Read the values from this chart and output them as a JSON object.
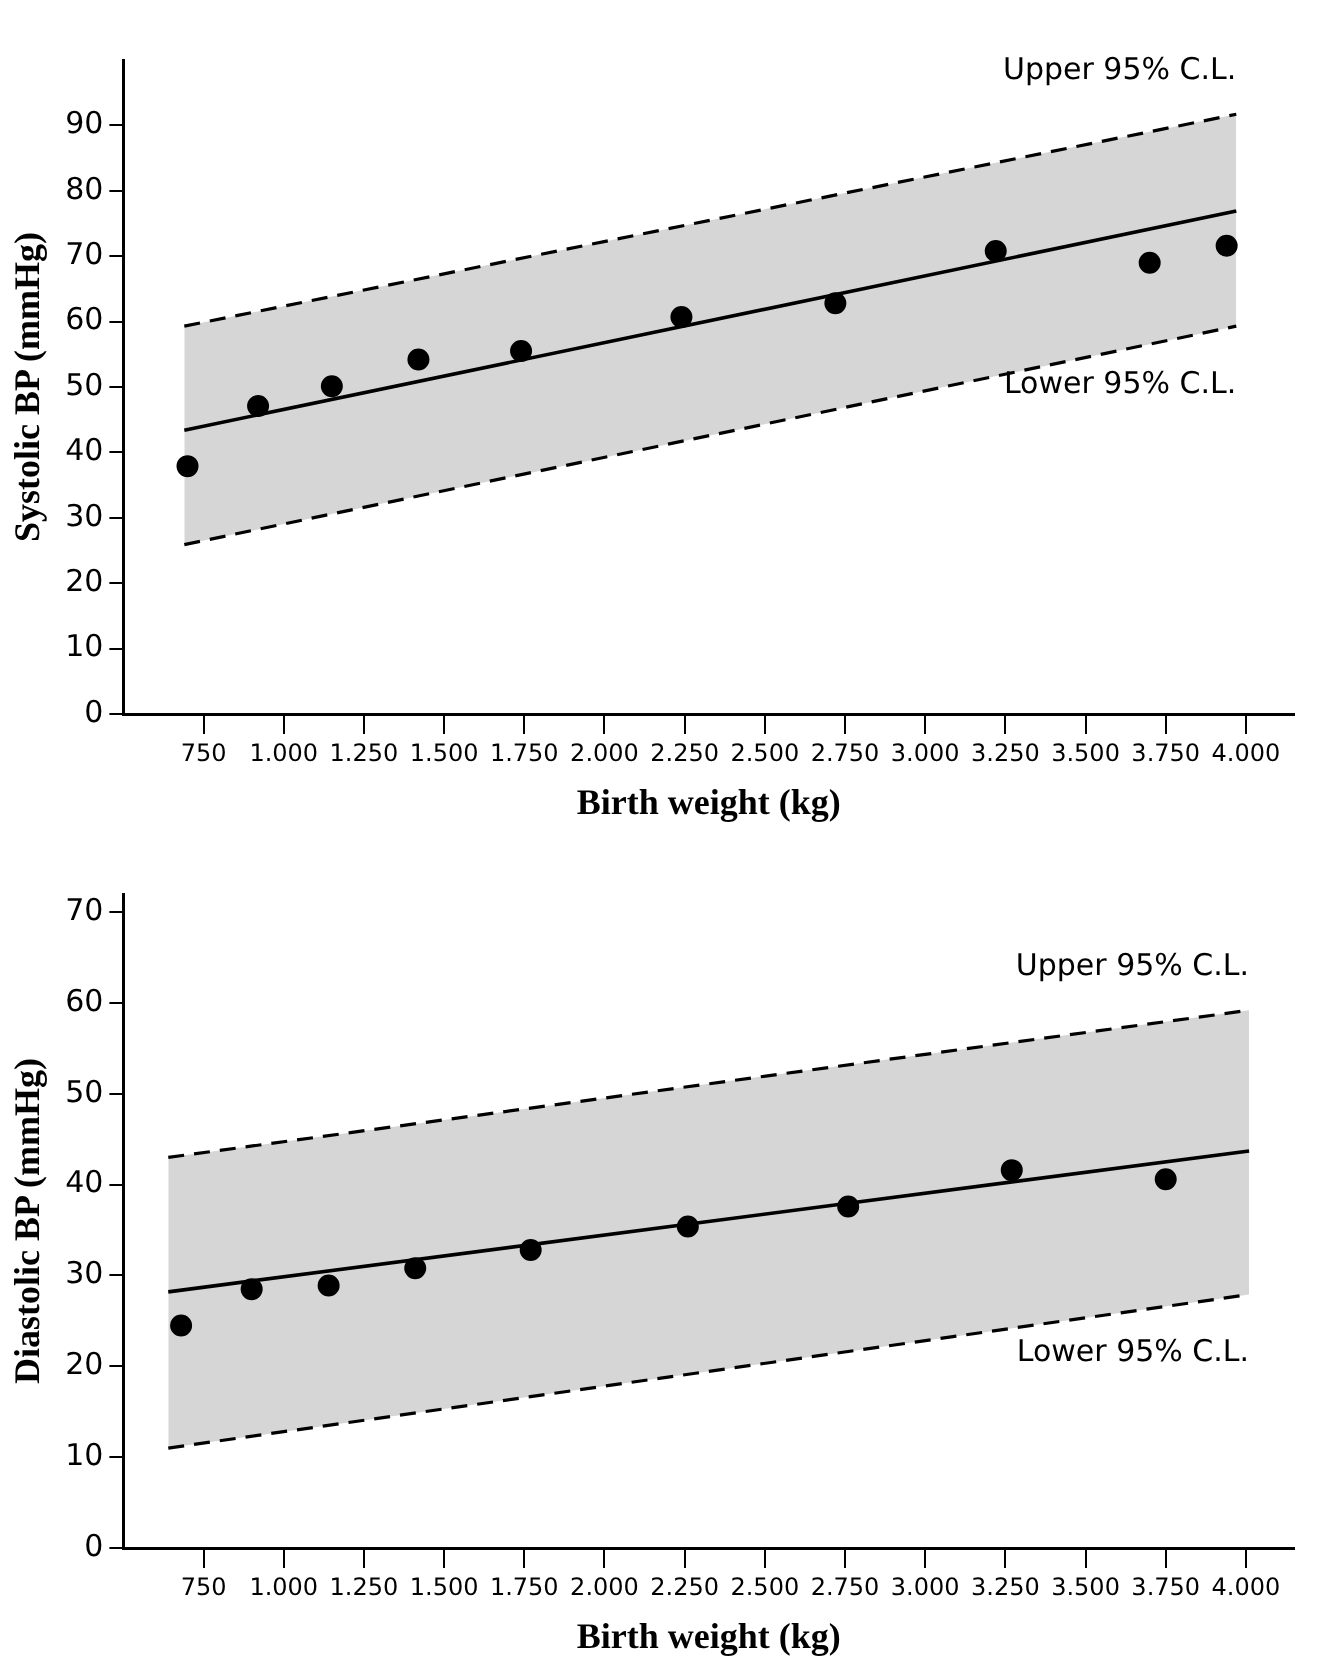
{
  "chart_data": [
    {
      "type": "scatter",
      "xlabel": "Birth weight (kg)",
      "ylabel": "Systolic BP (mmHg)",
      "xlim": [
        500,
        4150
      ],
      "ylim": [
        0,
        100
      ],
      "xticks": [
        {
          "value": 750,
          "label": "750"
        },
        {
          "value": 1000,
          "label": "1.000"
        },
        {
          "value": 1250,
          "label": "1.250"
        },
        {
          "value": 1500,
          "label": "1.500"
        },
        {
          "value": 1750,
          "label": "1.750"
        },
        {
          "value": 2000,
          "label": "2.000"
        },
        {
          "value": 2250,
          "label": "2.250"
        },
        {
          "value": 2500,
          "label": "2.500"
        },
        {
          "value": 2750,
          "label": "2.750"
        },
        {
          "value": 3000,
          "label": "3.000"
        },
        {
          "value": 3250,
          "label": "3.250"
        },
        {
          "value": 3500,
          "label": "3.500"
        },
        {
          "value": 3750,
          "label": "3.750"
        },
        {
          "value": 4000,
          "label": "4.000"
        }
      ],
      "yticks": [
        0,
        10,
        20,
        30,
        40,
        50,
        60,
        70,
        80,
        90
      ],
      "grid": false,
      "legend": false,
      "series": [
        {
          "type": "line",
          "color": "#000000",
          "marker": "none",
          "line_style": "solid",
          "x": [
            690,
            3970
          ],
          "values": [
            43.4,
            76.9
          ],
          "lower": [
            25.9,
            59.3
          ],
          "upper": [
            59.3,
            91.7
          ]
        },
        {
          "type": "scatter",
          "color": "#000000",
          "marker": "circle",
          "x": [
            700,
            920,
            1150,
            1420,
            1740,
            2240,
            2720,
            3220,
            3700,
            3940
          ],
          "values": [
            37.9,
            47.1,
            50.1,
            54.2,
            55.5,
            60.7,
            62.8,
            70.8,
            69.0,
            71.6
          ]
        }
      ],
      "annotations": [
        "Upper 95% C.L.",
        "Lower 95% C.L."
      ]
    },
    {
      "type": "scatter",
      "xlabel": "Birth weight (kg)",
      "ylabel": "Diastolic BP (mmHg)",
      "xlim": [
        500,
        4150
      ],
      "ylim": [
        0,
        72
      ],
      "xticks": [
        {
          "value": 750,
          "label": "750"
        },
        {
          "value": 1000,
          "label": "1.000"
        },
        {
          "value": 1250,
          "label": "1.250"
        },
        {
          "value": 1500,
          "label": "1.500"
        },
        {
          "value": 1750,
          "label": "1.750"
        },
        {
          "value": 2000,
          "label": "2.000"
        },
        {
          "value": 2250,
          "label": "2.250"
        },
        {
          "value": 2500,
          "label": "2.500"
        },
        {
          "value": 2750,
          "label": "2.750"
        },
        {
          "value": 3000,
          "label": "3.000"
        },
        {
          "value": 3250,
          "label": "3.250"
        },
        {
          "value": 3500,
          "label": "3.500"
        },
        {
          "value": 3750,
          "label": "3.750"
        },
        {
          "value": 4000,
          "label": "4.000"
        }
      ],
      "yticks": [
        0,
        10,
        20,
        30,
        40,
        50,
        60,
        70
      ],
      "grid": false,
      "legend": false,
      "series": [
        {
          "type": "line",
          "color": "#000000",
          "marker": "none",
          "line_style": "solid",
          "x": [
            640,
            4010
          ],
          "values": [
            28.2,
            43.7
          ],
          "lower": [
            11.0,
            27.9
          ],
          "upper": [
            43.0,
            59.2
          ]
        },
        {
          "type": "scatter",
          "color": "#000000",
          "marker": "circle",
          "x": [
            680,
            900,
            1140,
            1410,
            1770,
            2260,
            2760,
            3270,
            3750
          ],
          "values": [
            24.5,
            28.5,
            28.9,
            30.8,
            32.8,
            35.4,
            37.6,
            41.6,
            40.6
          ]
        }
      ],
      "annotations": [
        "Upper 95% C.L.",
        "Lower 95% C.L."
      ]
    }
  ]
}
